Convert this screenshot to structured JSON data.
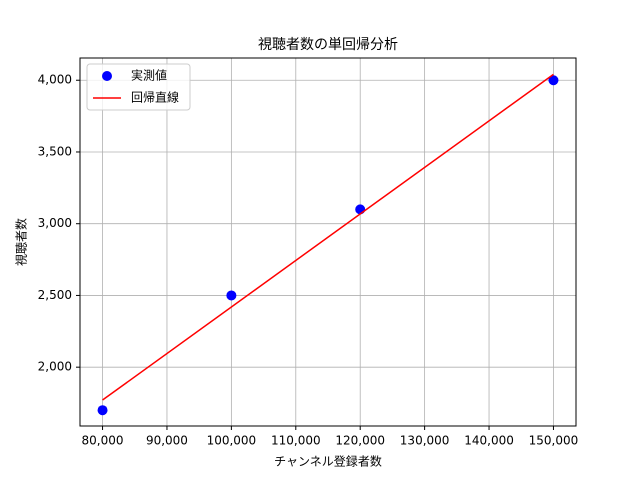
{
  "chart_data": {
    "type": "scatter",
    "title": "視聴者数の単回帰分析",
    "x_label": "チャンネル登録者数",
    "y_label": "視聴者数",
    "series": [
      {
        "name": "実測値",
        "type": "scatter",
        "color": "#0000ff",
        "x": [
          80000,
          100000,
          120000,
          150000
        ],
        "values": [
          1700,
          2500,
          3100,
          4000
        ]
      },
      {
        "name": "回帰直線",
        "type": "line",
        "color": "#ff0000",
        "x": [
          80000,
          150000
        ],
        "values": [
          1771,
          4041
        ]
      }
    ],
    "xlim": [
      76500,
      153500
    ],
    "xticks": [
      {
        "value": 80000,
        "label": "80,000"
      },
      {
        "value": 90000,
        "label": "90,000"
      },
      {
        "value": 100000,
        "label": "100,000"
      },
      {
        "value": 110000,
        "label": "110,000"
      },
      {
        "value": 120000,
        "label": "120,000"
      },
      {
        "value": 130000,
        "label": "130,000"
      },
      {
        "value": 140000,
        "label": "140,000"
      },
      {
        "value": 150000,
        "label": "150,000"
      }
    ],
    "ylim": [
      1590,
      4155
    ],
    "yticks": [
      {
        "value": 2000,
        "label": "2,000"
      },
      {
        "value": 2500,
        "label": "2,500"
      },
      {
        "value": 3000,
        "label": "3,000"
      },
      {
        "value": 3500,
        "label": "3,500"
      },
      {
        "value": 4000,
        "label": "4,000"
      }
    ],
    "grid": true,
    "legend": "upper-left"
  }
}
